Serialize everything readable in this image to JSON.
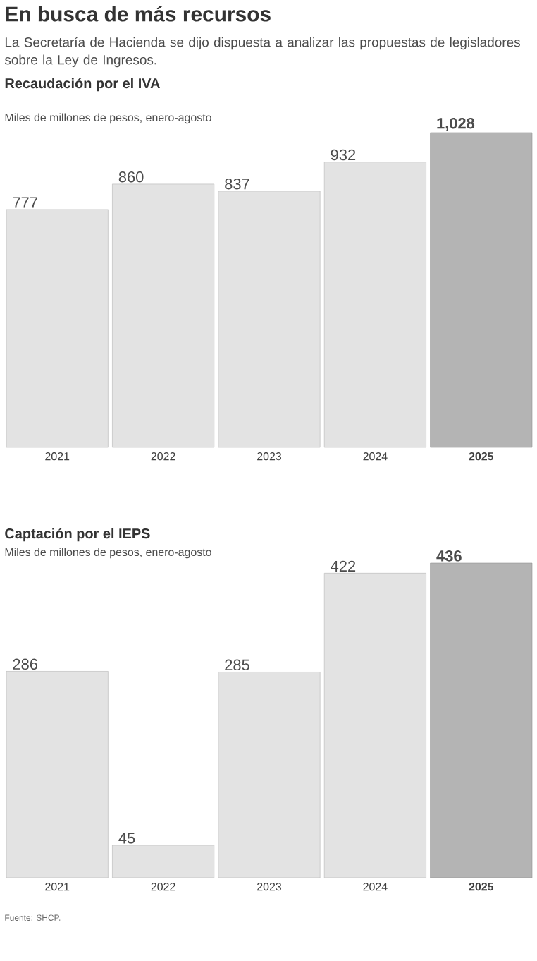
{
  "chart_data": [
    {
      "type": "other",
      "title": "En busca de más recursos",
      "subtitle": "La Secretaría de Hacienda se dijo dispuesta a analizar las propuestas de legisladores sobre la Ley de Ingresos."
    },
    {
      "type": "bar",
      "title": "Recaudación por el IVA",
      "subtitle": "Miles de millones de pesos, enero-agosto",
      "categories": [
        "2021",
        "2022",
        "2023",
        "2024",
        "2025"
      ],
      "values": [
        777,
        860,
        837,
        932,
        1028
      ],
      "value_labels": [
        "777",
        "860",
        "837",
        "932",
        "1,028"
      ],
      "colors": [
        "#e3e3e3",
        "#e3e3e3",
        "#e3e3e3",
        "#e3e3e3",
        "#b4b4b4"
      ],
      "ylim": [
        0,
        1028
      ]
    },
    {
      "type": "bar",
      "title": "Captación por el IEPS",
      "subtitle": "Miles de millones de pesos, enero-agosto",
      "categories": [
        "2021",
        "2022",
        "2023",
        "2024",
        "2025"
      ],
      "values": [
        286,
        45,
        285,
        422,
        436
      ],
      "value_labels": [
        "286",
        "45",
        "285",
        "422",
        "436"
      ],
      "colors": [
        "#e3e3e3",
        "#e3e3e3",
        "#e3e3e3",
        "#e3e3e3",
        "#b4b4b4"
      ],
      "ylim": [
        0,
        436
      ],
      "annotations": [
        "Fuente: SHCP."
      ]
    }
  ]
}
